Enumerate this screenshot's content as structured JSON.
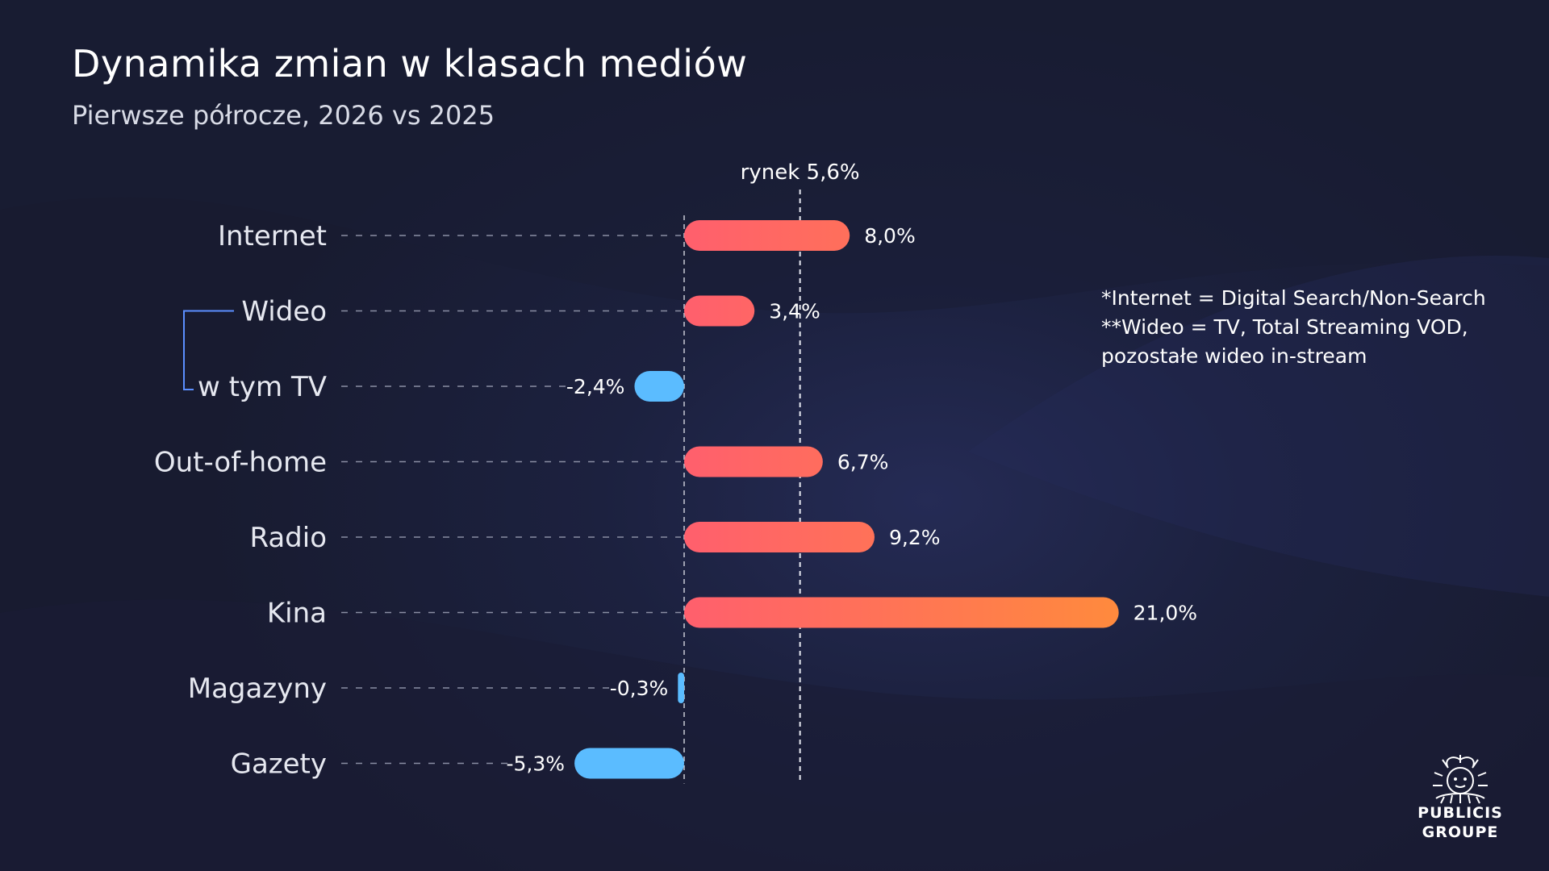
{
  "header": {
    "title": "Dynamika zmian w klasach mediów",
    "subtitle": "Pierwsze półrocze, 2026 vs 2025"
  },
  "notes": [
    "*Internet = Digital Search/Non-Search",
    "**Wideo = TV, Total Streaming VOD,",
    "pozostałe wideo in-stream"
  ],
  "brand": {
    "logo_lines": [
      "PUBLICIS",
      "GROUPE"
    ]
  },
  "colors": {
    "positive_start": "#ff5f6d",
    "positive_end": "#ff8a3d",
    "negative": "#5bbcff",
    "bracket": "#5b8fff"
  },
  "chart_data": {
    "type": "bar",
    "orientation": "horizontal",
    "title": "Dynamika zmian w klasach mediów",
    "subtitle": "Pierwsze półrocze, 2026 vs 2025",
    "categories": [
      "Internet",
      "Wideo",
      "w tym TV",
      "Out-of-home",
      "Radio",
      "Kina",
      "Magazyny",
      "Gazety"
    ],
    "values": [
      8.0,
      3.4,
      -2.4,
      6.7,
      9.2,
      21.0,
      -0.3,
      -5.3
    ],
    "value_labels": [
      "8,0%",
      "3,4%",
      "-2,4%",
      "6,7%",
      "9,2%",
      "21,0%",
      "-0,3%",
      "-5,3%"
    ],
    "reference_line": {
      "value": 5.6,
      "label": "rynek 5,6%"
    },
    "grouping": {
      "parent": "Wideo",
      "child": "w tym TV"
    },
    "grid": false,
    "legend": "none"
  }
}
